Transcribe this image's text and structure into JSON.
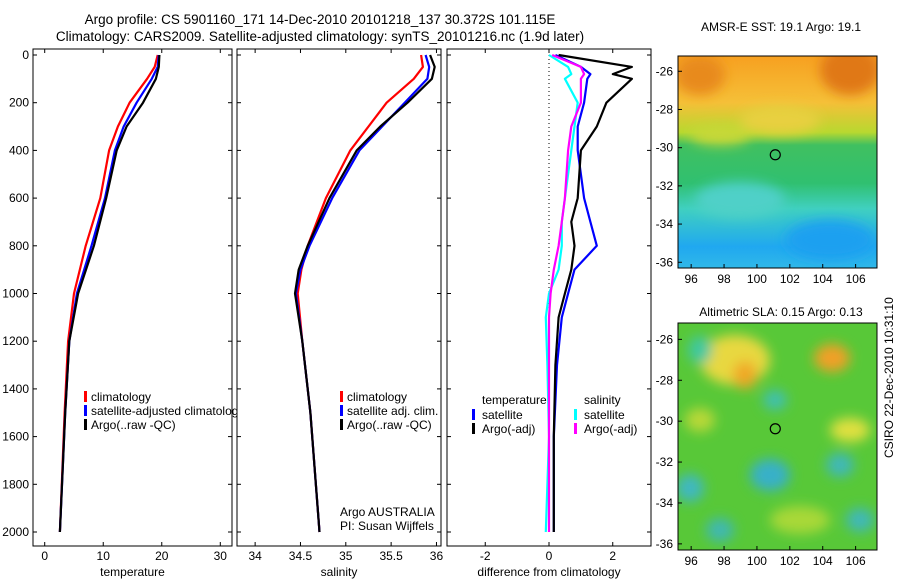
{
  "header": {
    "title_line1": "Argo profile: CS 5901160_171 14-Dec-2010 20101218_137 30.372S 101.115E",
    "title_line2": "Climatology: CARS2009. Satellite-adjusted climatology: synTS_20101216.nc (1.9d later)"
  },
  "maps": {
    "sst_title": "AMSR-E SST: 19.1 Argo: 19.1",
    "sla_title": "Altimetric SLA: 0.15 Argo: 0.13",
    "credit": "CSIRO 22-Dec-2010 10:31:10"
  },
  "colors": {
    "climatology": "#ff0000",
    "satellite": "#0000ff",
    "argo": "#000000",
    "sal_satellite": "#00ffff",
    "sal_argo": "#ff00ff"
  },
  "chart_data": [
    {
      "type": "line",
      "xlabel": "temperature",
      "ylim": [
        2000,
        0
      ],
      "xlim": [
        -2,
        32
      ],
      "xticks": [
        "0",
        "10",
        "20",
        "30"
      ],
      "yticks": [
        "0",
        "200",
        "400",
        "600",
        "800",
        "1000",
        "1200",
        "1400",
        "1600",
        "1800",
        "2000"
      ],
      "legend": [
        "climatology",
        "satellite-adjusted climatology",
        "Argo(..raw -QC)"
      ],
      "depth": [
        0,
        50,
        100,
        200,
        300,
        400,
        600,
        800,
        1000,
        1200,
        1500,
        2000
      ],
      "series": [
        {
          "name": "climatology",
          "x": [
            19.3,
            18.8,
            17.5,
            14.5,
            12.5,
            11.0,
            9.5,
            7.0,
            5.0,
            4.0,
            3.4,
            2.6
          ]
        },
        {
          "name": "satellite-adjusted climatology",
          "x": [
            19.5,
            19.3,
            18.3,
            15.7,
            13.5,
            12.0,
            10.3,
            8.0,
            5.5,
            4.2,
            3.5,
            2.6
          ]
        },
        {
          "name": "Argo(..raw -QC)",
          "x": [
            19.6,
            19.5,
            19.0,
            16.8,
            14.0,
            12.3,
            10.5,
            8.4,
            5.7,
            4.2,
            3.5,
            2.6
          ]
        }
      ]
    },
    {
      "type": "line",
      "xlabel": "salinity",
      "ylim": [
        2000,
        0
      ],
      "xlim": [
        33.8,
        36.05
      ],
      "xticks": [
        "34",
        "34.5",
        "35",
        "35.5",
        "36"
      ],
      "legend": [
        "climatology",
        "satellite adj. clim.",
        "Argo(..raw -QC)"
      ],
      "annotation": [
        "Argo AUSTRALIA",
        "PI: Susan Wijffels"
      ],
      "depth": [
        0,
        50,
        100,
        200,
        300,
        400,
        600,
        800,
        900,
        1000,
        1200,
        1500,
        2000
      ],
      "series": [
        {
          "name": "climatology",
          "x": [
            35.83,
            35.85,
            35.75,
            35.45,
            35.25,
            35.05,
            34.78,
            34.58,
            34.51,
            34.47,
            34.52,
            34.61,
            34.71
          ]
        },
        {
          "name": "satellite adj. clim.",
          "x": [
            35.88,
            35.92,
            35.9,
            35.65,
            35.4,
            35.15,
            34.85,
            34.6,
            34.5,
            34.45,
            34.52,
            34.61,
            34.71
          ]
        },
        {
          "name": "Argo(..raw -QC)",
          "x": [
            35.93,
            35.98,
            35.95,
            35.68,
            35.38,
            35.12,
            34.82,
            34.58,
            34.48,
            34.44,
            34.52,
            34.61,
            34.71
          ]
        }
      ]
    },
    {
      "type": "line",
      "xlabel": "difference from climatology",
      "ylim": [
        2000,
        0
      ],
      "xlim": [
        -3.2,
        3.2
      ],
      "xticks": [
        "-2",
        "0",
        "2"
      ],
      "legend": [
        "temperature",
        "satellite",
        "Argo(-adj)",
        "salinity",
        "satellite",
        "Argo(-adj)"
      ],
      "depth": [
        0,
        50,
        80,
        100,
        200,
        300,
        400,
        600,
        700,
        800,
        900,
        1000,
        1100,
        1300,
        1600,
        2000
      ],
      "series": [
        {
          "name": "temperature satellite",
          "x": [
            0.2,
            1.0,
            1.3,
            1.2,
            1.1,
            0.9,
            0.9,
            1.1,
            1.3,
            1.5,
            0.8,
            0.6,
            0.4,
            0.25,
            0.15,
            0.15
          ]
        },
        {
          "name": "temperature Argo(-adj)",
          "x": [
            0.3,
            2.6,
            2.0,
            2.6,
            1.8,
            1.5,
            1.0,
            0.9,
            0.7,
            0.8,
            0.7,
            0.5,
            0.3,
            0.2,
            0.15,
            0.15
          ]
        },
        {
          "name": "salinity satellite",
          "x": [
            0.0,
            0.6,
            0.7,
            0.5,
            0.9,
            0.8,
            0.7,
            0.5,
            0.4,
            0.4,
            0.3,
            0.0,
            -0.1,
            -0.05,
            0.0,
            -0.1
          ]
        },
        {
          "name": "salinity Argo(-adj)",
          "x": [
            0.1,
            1.0,
            1.1,
            1.0,
            1.0,
            0.7,
            0.6,
            0.5,
            0.4,
            0.3,
            0.15,
            0.05,
            0.0,
            0.0,
            0.0,
            0.0
          ]
        }
      ]
    }
  ],
  "sst_map": {
    "xticks": [
      "96",
      "98",
      "100",
      "102",
      "104",
      "106"
    ],
    "yticks": [
      "-26",
      "-28",
      "-30",
      "-32",
      "-34",
      "-36"
    ],
    "argo_marker": [
      101.115,
      -30.372
    ]
  },
  "sla_map": {
    "xticks": [
      "96",
      "98",
      "100",
      "102",
      "104",
      "106"
    ],
    "yticks": [
      "-26",
      "-28",
      "-30",
      "-32",
      "-34",
      "-36"
    ],
    "argo_marker": [
      101.115,
      -30.372
    ]
  }
}
